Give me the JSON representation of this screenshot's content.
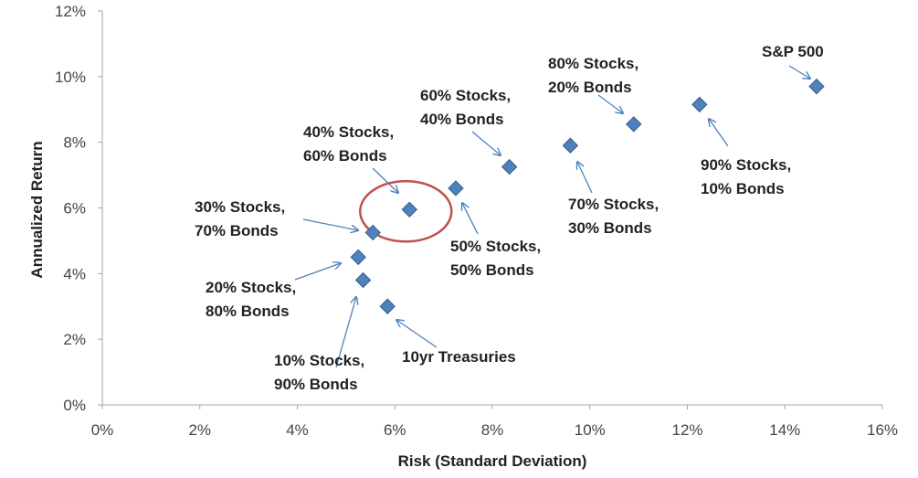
{
  "chart_data": {
    "type": "scatter",
    "title": "",
    "xlabel": "Risk (Standard Deviation)",
    "ylabel": "Annualized Return",
    "xlim": [
      0,
      16
    ],
    "ylim": [
      0,
      12
    ],
    "x_ticks": [
      "0%",
      "2%",
      "4%",
      "6%",
      "8%",
      "10%",
      "12%",
      "14%",
      "16%"
    ],
    "y_ticks": [
      "0%",
      "2%",
      "4%",
      "6%",
      "8%",
      "10%",
      "12%"
    ],
    "grid": false,
    "legend": "none",
    "marker_color": "#4f81bd",
    "highlight_color": "#c0504d",
    "points": [
      {
        "label": [
          "10yr Treasuries"
        ],
        "x": 5.85,
        "y": 3.0
      },
      {
        "label": [
          "10% Stocks,",
          "90% Bonds"
        ],
        "x": 5.35,
        "y": 3.8
      },
      {
        "label": [
          "20% Stocks,",
          "80% Bonds"
        ],
        "x": 5.25,
        "y": 4.5
      },
      {
        "label": [
          "30% Stocks,",
          "70% Bonds"
        ],
        "x": 5.55,
        "y": 5.25
      },
      {
        "label": [
          "40% Stocks,",
          "60% Bonds"
        ],
        "x": 6.3,
        "y": 5.95,
        "highlight": true
      },
      {
        "label": [
          "50% Stocks,",
          "50% Bonds"
        ],
        "x": 7.25,
        "y": 6.6
      },
      {
        "label": [
          "60% Stocks,",
          "40% Bonds"
        ],
        "x": 8.35,
        "y": 7.25
      },
      {
        "label": [
          "70% Stocks,",
          "30% Bonds"
        ],
        "x": 9.6,
        "y": 7.9
      },
      {
        "label": [
          "80% Stocks,",
          "20% Bonds"
        ],
        "x": 10.9,
        "y": 8.55
      },
      {
        "label": [
          "90% Stocks,",
          "10% Bonds"
        ],
        "x": 12.25,
        "y": 9.15
      },
      {
        "label": [
          "S&P 500"
        ],
        "x": 14.65,
        "y": 9.7
      }
    ]
  }
}
